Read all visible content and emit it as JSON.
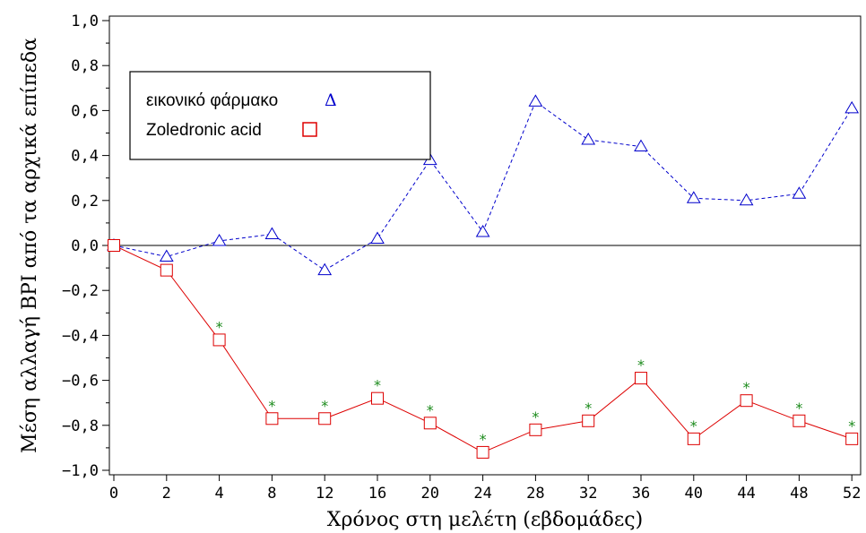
{
  "chart_data": {
    "type": "line",
    "title": "",
    "xlabel": "Χρόνος στη μελέτη (εβδομάδες)",
    "ylabel": "Μέση αλλαγή BPI από τα αρχικά επίπεδα",
    "categories": [
      "0",
      "2",
      "4",
      "8",
      "12",
      "16",
      "20",
      "24",
      "28",
      "32",
      "36",
      "40",
      "44",
      "48",
      "52"
    ],
    "ylim": [
      -1.0,
      1.0
    ],
    "yticks": [
      "−1,0",
      "−0,8",
      "−0,6",
      "−0,4",
      "−0,2",
      "0,0",
      "0,2",
      "0,4",
      "0,6",
      "0,8",
      "1,0"
    ],
    "yticks_values": [
      -1.0,
      -0.8,
      -0.6,
      -0.4,
      -0.2,
      0.0,
      0.2,
      0.4,
      0.6,
      0.8,
      1.0
    ],
    "reference_line_y": 0.0,
    "legend_placement": "top-left",
    "series": [
      {
        "name": "εικονικό φάρμακο",
        "legend_symbol": "Δ",
        "color": "#0000cc",
        "marker": "triangle",
        "line_style": "dashed",
        "values": [
          0.0,
          -0.05,
          0.02,
          0.05,
          -0.11,
          0.03,
          0.38,
          0.06,
          0.64,
          0.47,
          0.44,
          0.21,
          0.2,
          0.23,
          0.61
        ]
      },
      {
        "name": "Zoledronic acid",
        "legend_symbol": "",
        "color": "#dd0000",
        "marker": "square",
        "line_style": "solid",
        "values": [
          0.0,
          -0.11,
          -0.42,
          -0.77,
          -0.77,
          -0.68,
          -0.79,
          -0.92,
          -0.82,
          -0.78,
          -0.59,
          -0.86,
          -0.69,
          -0.78,
          -0.86
        ]
      }
    ],
    "annotations": {
      "symbol": "*",
      "color": "#1a8a1a",
      "series": "Zoledronic acid",
      "category_indices": [
        2,
        3,
        4,
        5,
        6,
        7,
        8,
        9,
        10,
        11,
        12,
        13,
        14
      ]
    }
  }
}
